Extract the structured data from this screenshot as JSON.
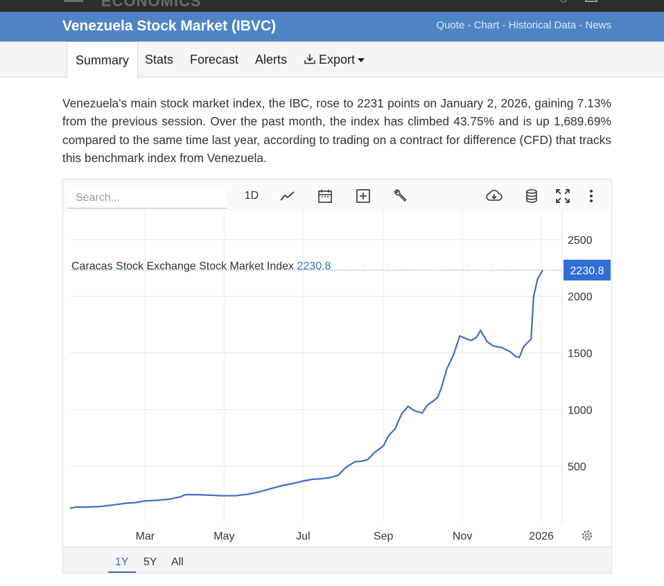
{
  "header": {
    "logo": "ECONOMICS",
    "title": "Venezuela Stock Market (IBVC)",
    "links": "Quote - Chart - Historical Data - News"
  },
  "tabs": [
    {
      "label": "Summary"
    },
    {
      "label": "Stats"
    },
    {
      "label": "Forecast"
    },
    {
      "label": "Alerts"
    },
    {
      "label": "Export"
    }
  ],
  "summary": "Venezuela's main stock market index, the IBC, rose to 2231 points on January 2, 2026, gaining 7.13% from the previous session. Over the past month, the index has climbed 43.75% and is up 1,689.69% compared to the same time last year, according to trading on a contract for difference (CFD) that tracks this benchmark index from Venezuela.",
  "toolbar": {
    "search_placeholder": "Search...",
    "interval": "1D"
  },
  "ranges": [
    "1Y",
    "5Y",
    "All"
  ],
  "colors": {
    "accent": "#3a6ec4",
    "titlebar": "#4f84c4",
    "line": "#3a6ec4",
    "last_value_badge": "#2f6fd6"
  },
  "chart_data": {
    "type": "line",
    "title": "Caracas Stock Exchange Stock Market Index",
    "last_value": "2230.8",
    "xlabel": "",
    "ylabel": "",
    "x_ticks": [
      "Mar",
      "May",
      "Jul",
      "Sep",
      "Nov",
      "2026"
    ],
    "y_ticks": [
      500,
      1000,
      1500,
      2000,
      2500
    ],
    "ylim": [
      0,
      2750
    ],
    "xlim": [
      "2025-01-02",
      "2026-01-17"
    ],
    "grid": true,
    "series": [
      {
        "x": [
          "2025-01-02",
          "2025-01-07",
          "2025-01-15",
          "2025-01-25",
          "2025-02-05",
          "2025-02-15",
          "2025-02-22",
          "2025-03-01",
          "2025-03-10",
          "2025-03-20",
          "2025-03-28",
          "2025-04-01",
          "2025-04-10",
          "2025-04-20",
          "2025-04-30",
          "2025-05-10",
          "2025-05-20",
          "2025-05-30",
          "2025-06-05",
          "2025-06-15",
          "2025-06-22",
          "2025-07-01",
          "2025-07-08",
          "2025-07-15",
          "2025-07-22",
          "2025-07-28",
          "2025-08-03",
          "2025-08-10",
          "2025-08-15",
          "2025-08-20",
          "2025-08-25",
          "2025-09-01",
          "2025-09-05",
          "2025-09-10",
          "2025-09-15",
          "2025-09-20",
          "2025-09-25",
          "2025-10-01",
          "2025-10-05",
          "2025-10-10",
          "2025-10-13",
          "2025-10-16",
          "2025-10-20",
          "2025-10-25",
          "2025-10-30",
          "2025-11-05",
          "2025-11-08",
          "2025-11-12",
          "2025-11-15",
          "2025-11-20",
          "2025-11-25",
          "2025-12-01",
          "2025-12-08",
          "2025-12-12",
          "2025-12-15",
          "2025-12-18",
          "2025-12-22",
          "2025-12-24",
          "2025-12-26",
          "2025-12-29",
          "2026-01-02"
        ],
        "values": [
          130,
          140,
          140,
          145,
          160,
          175,
          180,
          195,
          200,
          210,
          230,
          250,
          250,
          245,
          240,
          240,
          255,
          280,
          300,
          330,
          345,
          370,
          385,
          390,
          400,
          420,
          490,
          540,
          545,
          560,
          620,
          680,
          770,
          830,
          960,
          1030,
          990,
          970,
          1040,
          1080,
          1110,
          1200,
          1360,
          1480,
          1650,
          1620,
          1610,
          1640,
          1700,
          1600,
          1560,
          1550,
          1510,
          1470,
          1460,
          1550,
          1600,
          1620,
          2000,
          2150,
          2231
        ]
      }
    ]
  }
}
